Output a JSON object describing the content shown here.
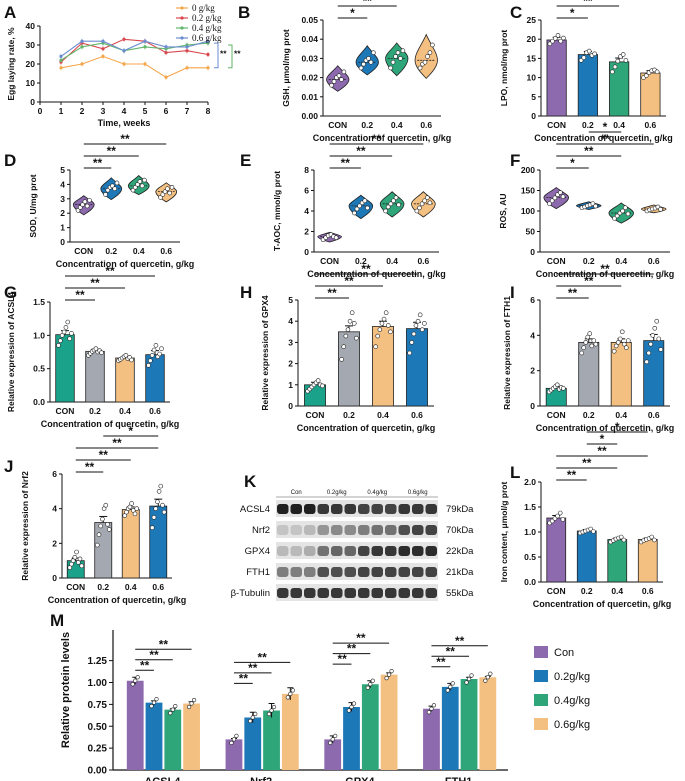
{
  "colors": {
    "con": "#8d69ae",
    "g02": "#1d78b8",
    "g04": "#2ea67a",
    "g06": "#f4c081",
    "g02_line": "#d9484f",
    "g04_line": "#62b66a",
    "g06_line": "#6a8ccf",
    "con_line": "#f4a64a"
  },
  "shared": {
    "x_categories": [
      "CON",
      "0.2",
      "0.4",
      "0.6"
    ],
    "x_title": "Concentration of quercetin, g/kg"
  },
  "chart_data": [
    {
      "id": "A",
      "type": "line",
      "title": "",
      "xlabel": "Time, weeks",
      "ylabel": "Egg laying rate, %",
      "xlim": [
        0,
        8
      ],
      "ylim": [
        0,
        40
      ],
      "xticks": [
        "0",
        "1",
        "2",
        "3",
        "4",
        "5",
        "6",
        "7",
        "8"
      ],
      "yticks": [
        "0",
        "10",
        "20",
        "30",
        "40"
      ],
      "x": [
        1,
        2,
        3,
        4,
        5,
        6,
        7,
        8
      ],
      "series": [
        {
          "name": "0 g/kg",
          "values": [
            18,
            20,
            24,
            20,
            20,
            13,
            18,
            18
          ]
        },
        {
          "name": "0.2 g/kg",
          "values": [
            21,
            31,
            28,
            33,
            32,
            26,
            27,
            25
          ]
        },
        {
          "name": "0.4 g/kg",
          "values": [
            22,
            29,
            31,
            27,
            29,
            28,
            30,
            31
          ]
        },
        {
          "name": "0.6 g/kg",
          "values": [
            24,
            32,
            32,
            27,
            32,
            29,
            29,
            32
          ]
        }
      ],
      "annotations": [
        "**",
        "**"
      ]
    },
    {
      "id": "B",
      "type": "violin",
      "ylabel": "GSH, μmol/mg prot",
      "ylim": [
        0,
        0.05
      ],
      "yticks": [
        "0.00",
        "0.01",
        "0.02",
        "0.03",
        "0.04",
        "0.05"
      ],
      "values": [
        0.019,
        0.028,
        0.03,
        0.029
      ],
      "points": [
        [
          0.016,
          0.018,
          0.02,
          0.021,
          0.019,
          0.023
        ],
        [
          0.025,
          0.027,
          0.029,
          0.03,
          0.028,
          0.033
        ],
        [
          0.025,
          0.028,
          0.031,
          0.033,
          0.03,
          0.034
        ],
        [
          0.025,
          0.027,
          0.028,
          0.031,
          0.033,
          0.037
        ]
      ],
      "significance": [
        {
          "from": 0,
          "to": 1,
          "label": "*"
        },
        {
          "from": 0,
          "to": 2,
          "label": "**"
        },
        {
          "from": 0,
          "to": 3,
          "label": "**"
        }
      ]
    },
    {
      "id": "C",
      "type": "bar",
      "ylabel": "LPO, nmol/mg prot",
      "ylim": [
        0,
        25
      ],
      "yticks": [
        "0",
        "5",
        "10",
        "15",
        "20",
        "25"
      ],
      "values": [
        19.8,
        16.0,
        14.1,
        11.2
      ],
      "errors": [
        0.7,
        0.8,
        1.0,
        0.6
      ],
      "points": [
        [
          18.8,
          19.5,
          20.2,
          21.0,
          19.5,
          20.3
        ],
        [
          14.5,
          15.2,
          16.5,
          16.9,
          15.8,
          16.2
        ],
        [
          11.5,
          12.8,
          14.3,
          15.5,
          16.0,
          14.5
        ],
        [
          10.0,
          10.5,
          11.3,
          11.8,
          12.0,
          11.5
        ]
      ],
      "significance": [
        {
          "from": 0,
          "to": 1,
          "label": "*"
        },
        {
          "from": 0,
          "to": 2,
          "label": "**"
        },
        {
          "from": 0,
          "to": 3,
          "label": "**"
        },
        {
          "from": 1,
          "to": 3,
          "label": "**"
        }
      ]
    },
    {
      "id": "D",
      "type": "violin",
      "ylabel": "SOD, U/mg prot",
      "ylim": [
        0,
        5
      ],
      "yticks": [
        "0",
        "1",
        "2",
        "3",
        "4",
        "5"
      ],
      "values": [
        2.6,
        3.7,
        3.9,
        3.5
      ],
      "points": [
        [
          2.2,
          2.4,
          2.6,
          2.8,
          2.5,
          2.9
        ],
        [
          3.3,
          3.6,
          3.8,
          3.9,
          3.7,
          4.1
        ],
        [
          3.6,
          3.8,
          4.0,
          4.2,
          3.9,
          4.3
        ],
        [
          3.1,
          3.3,
          3.5,
          3.7,
          3.4,
          3.8
        ]
      ],
      "significance": [
        {
          "from": 0,
          "to": 1,
          "label": "**"
        },
        {
          "from": 0,
          "to": 2,
          "label": "**"
        },
        {
          "from": 0,
          "to": 3,
          "label": "**"
        }
      ]
    },
    {
      "id": "E",
      "type": "violin",
      "ylabel": "T-AOC, mmol/g prot",
      "ylim": [
        0,
        8
      ],
      "yticks": [
        "0",
        "2",
        "4",
        "6",
        "8"
      ],
      "values": [
        1.5,
        4.5,
        4.7,
        4.7
      ],
      "points": [
        [
          1.2,
          1.4,
          1.6,
          1.7,
          1.5,
          1.4
        ],
        [
          3.8,
          4.2,
          4.5,
          4.8,
          5.0,
          4.3
        ],
        [
          4.0,
          4.4,
          4.7,
          5.0,
          5.3,
          4.6
        ],
        [
          4.0,
          4.3,
          4.7,
          5.0,
          5.3,
          4.8
        ]
      ],
      "significance": [
        {
          "from": 0,
          "to": 1,
          "label": "**"
        },
        {
          "from": 0,
          "to": 2,
          "label": "**"
        },
        {
          "from": 0,
          "to": 3,
          "label": "**"
        }
      ]
    },
    {
      "id": "F",
      "type": "violin",
      "ylabel": "ROS, AU",
      "ylim": [
        0,
        200
      ],
      "yticks": [
        "0",
        "50",
        "100",
        "150",
        "200"
      ],
      "values": [
        133,
        113,
        95,
        105
      ],
      "points": [
        [
          118,
          125,
          132,
          140,
          145,
          135
        ],
        [
          108,
          110,
          113,
          115,
          118,
          112
        ],
        [
          82,
          88,
          95,
          100,
          108,
          93
        ],
        [
          100,
          103,
          105,
          107,
          110,
          104
        ]
      ],
      "significance": [
        {
          "from": 0,
          "to": 1,
          "label": "*"
        },
        {
          "from": 0,
          "to": 2,
          "label": "**"
        },
        {
          "from": 0,
          "to": 3,
          "label": "**"
        },
        {
          "from": 1,
          "to": 2,
          "label": "*"
        }
      ]
    },
    {
      "id": "G",
      "type": "bar",
      "ylabel": "Relative expression of ACSL4",
      "ylim": [
        0,
        1.5
      ],
      "yticks": [
        "0.0",
        "0.5",
        "1.0",
        "1.5"
      ],
      "values": [
        1.01,
        0.76,
        0.66,
        0.71
      ],
      "errors": [
        0.06,
        0.03,
        0.02,
        0.06
      ],
      "points": [
        [
          0.85,
          0.92,
          1.0,
          1.05,
          1.12,
          1.2,
          0.95,
          1.03
        ],
        [
          0.7,
          0.73,
          0.76,
          0.78,
          0.8,
          0.75,
          0.77,
          0.74
        ],
        [
          0.62,
          0.64,
          0.66,
          0.68,
          0.7,
          0.65,
          0.67,
          0.63
        ],
        [
          0.55,
          0.62,
          0.7,
          0.78,
          0.85,
          0.68,
          0.72,
          0.8
        ]
      ],
      "significance": [
        {
          "from": 0,
          "to": 1,
          "label": "**"
        },
        {
          "from": 0,
          "to": 2,
          "label": "**"
        },
        {
          "from": 0,
          "to": 3,
          "label": "**"
        }
      ]
    },
    {
      "id": "H",
      "type": "bar",
      "ylabel": "Relative expression of GPX4",
      "ylim": [
        0,
        5
      ],
      "yticks": [
        "0",
        "1",
        "2",
        "3",
        "4",
        "5"
      ],
      "values": [
        1.0,
        3.5,
        3.75,
        3.65
      ],
      "errors": [
        0.12,
        0.28,
        0.25,
        0.3
      ],
      "points": [
        [
          0.7,
          0.8,
          0.9,
          1.0,
          1.1,
          1.2,
          1.0,
          0.95
        ],
        [
          2.2,
          2.8,
          3.3,
          3.6,
          4.0,
          4.4,
          3.9,
          3.2
        ],
        [
          2.8,
          3.3,
          3.6,
          3.9,
          4.1,
          4.4,
          3.8,
          3.5
        ],
        [
          2.5,
          3.0,
          3.4,
          3.8,
          4.0,
          4.3,
          3.6,
          3.9
        ]
      ],
      "significance": [
        {
          "from": 0,
          "to": 1,
          "label": "**"
        },
        {
          "from": 0,
          "to": 2,
          "label": "**"
        },
        {
          "from": 0,
          "to": 3,
          "label": "**"
        }
      ]
    },
    {
      "id": "I",
      "type": "bar",
      "ylabel": "Relative expression of FTH1",
      "ylim": [
        0,
        6
      ],
      "yticks": [
        "0",
        "2",
        "4",
        "6"
      ],
      "values": [
        1.0,
        3.6,
        3.6,
        3.7
      ],
      "errors": [
        0.1,
        0.2,
        0.2,
        0.35
      ],
      "points": [
        [
          0.8,
          0.9,
          1.0,
          1.1,
          1.2,
          0.95,
          1.05,
          1.0
        ],
        [
          3.0,
          3.3,
          3.6,
          3.9,
          4.1,
          3.4,
          3.7,
          3.5
        ],
        [
          3.1,
          3.4,
          3.6,
          3.8,
          4.2,
          3.5,
          3.3,
          3.7
        ],
        [
          2.5,
          3.0,
          3.5,
          4.0,
          4.4,
          4.8,
          3.8,
          3.2
        ]
      ],
      "significance": [
        {
          "from": 0,
          "to": 1,
          "label": "**"
        },
        {
          "from": 0,
          "to": 2,
          "label": "**"
        },
        {
          "from": 0,
          "to": 3,
          "label": "**"
        }
      ]
    },
    {
      "id": "J",
      "type": "bar",
      "ylabel": "Relative expression of Nrf2",
      "ylim": [
        0,
        6
      ],
      "yticks": [
        "0",
        "2",
        "4",
        "6"
      ],
      "values": [
        1.0,
        3.2,
        3.95,
        4.15
      ],
      "errors": [
        0.15,
        0.35,
        0.15,
        0.4
      ],
      "points": [
        [
          0.6,
          0.8,
          1.0,
          1.2,
          1.5,
          0.9,
          1.1,
          0.7
        ],
        [
          1.9,
          2.5,
          3.0,
          3.4,
          4.0,
          4.2,
          3.1,
          2.8
        ],
        [
          3.6,
          3.8,
          4.0,
          4.1,
          4.3,
          3.9,
          3.7,
          4.0
        ],
        [
          2.9,
          3.5,
          4.0,
          4.4,
          5.0,
          5.3,
          4.2,
          3.8
        ]
      ],
      "significance": [
        {
          "from": 0,
          "to": 1,
          "label": "**"
        },
        {
          "from": 0,
          "to": 2,
          "label": "**"
        },
        {
          "from": 0,
          "to": 3,
          "label": "**"
        },
        {
          "from": 1,
          "to": 3,
          "label": "*"
        }
      ]
    },
    {
      "id": "L",
      "type": "bar",
      "ylabel": "Iron content, μmol/g prot",
      "ylim": [
        0,
        2.0
      ],
      "yticks": [
        "0.0",
        "0.5",
        "1.0",
        "1.5",
        "2.0"
      ],
      "values": [
        1.28,
        1.02,
        0.85,
        0.85
      ],
      "errors": [
        0.05,
        0.03,
        0.03,
        0.03
      ],
      "points": [
        [
          1.18,
          1.22,
          1.27,
          1.32,
          1.38,
          1.25
        ],
        [
          0.98,
          1.0,
          1.02,
          1.04,
          1.06,
          1.01
        ],
        [
          0.8,
          0.83,
          0.86,
          0.88,
          0.9,
          0.84
        ],
        [
          0.8,
          0.83,
          0.85,
          0.87,
          0.9,
          0.84
        ]
      ],
      "significance": [
        {
          "from": 0,
          "to": 1,
          "label": "**"
        },
        {
          "from": 0,
          "to": 2,
          "label": "**"
        },
        {
          "from": 0,
          "to": 3,
          "label": "**"
        },
        {
          "from": 1,
          "to": 2,
          "label": "*"
        },
        {
          "from": 1,
          "to": 3,
          "label": "*"
        }
      ]
    },
    {
      "id": "M",
      "type": "grouped-bar",
      "ylabel": "Relative protein levels",
      "ylim": [
        0,
        1.6
      ],
      "yticks": [
        "0.00",
        "0.25",
        "0.50",
        "0.75",
        "1.00",
        "1.25"
      ],
      "categories": [
        "ACSL4",
        "Nrf2",
        "GPX4",
        "FTH1"
      ],
      "series": [
        {
          "name": "Con",
          "values": [
            1.02,
            0.35,
            0.35,
            0.7
          ],
          "errors": [
            0.04,
            0.01,
            0.04,
            0.03
          ]
        },
        {
          "name": "0.2g/kg",
          "values": [
            0.77,
            0.6,
            0.72,
            0.95
          ],
          "errors": [
            0.02,
            0.06,
            0.05,
            0.04
          ]
        },
        {
          "name": "0.4g/kg",
          "values": [
            0.69,
            0.68,
            0.98,
            1.04
          ],
          "errors": [
            0.01,
            0.08,
            0.04,
            0.02
          ]
        },
        {
          "name": "0.6g/kg",
          "values": [
            0.76,
            0.87,
            1.09,
            1.06
          ],
          "errors": [
            0.02,
            0.07,
            0.02,
            0.01
          ]
        }
      ],
      "significance_labels": [
        "**",
        "**",
        "**"
      ],
      "legend_position": "right"
    }
  ],
  "western_blot": {
    "label": "K",
    "group_labels": [
      "Con",
      "0.2g/kg",
      "0.4g/kg",
      "0.6g/kg"
    ],
    "proteins": [
      {
        "name": "ACSL4",
        "kda": "79kDa",
        "intensity": [
          0.95,
          0.95,
          0.95,
          0.85,
          0.85,
          0.85,
          0.8,
          0.8,
          0.8,
          0.85,
          0.85,
          0.85
        ]
      },
      {
        "name": "Nrf2",
        "kda": "70kDa",
        "intensity": [
          0.25,
          0.25,
          0.3,
          0.45,
          0.5,
          0.5,
          0.55,
          0.6,
          0.6,
          0.75,
          0.8,
          0.8
        ]
      },
      {
        "name": "GPX4",
        "kda": "22kDa",
        "intensity": [
          0.3,
          0.3,
          0.35,
          0.6,
          0.65,
          0.65,
          0.8,
          0.85,
          0.85,
          0.9,
          0.9,
          0.9
        ]
      },
      {
        "name": "FTH1",
        "kda": "21kDa",
        "intensity": [
          0.55,
          0.55,
          0.55,
          0.75,
          0.75,
          0.75,
          0.8,
          0.8,
          0.8,
          0.8,
          0.8,
          0.8
        ]
      },
      {
        "name": "β-Tubulin",
        "kda": "55kDa",
        "intensity": [
          0.85,
          0.85,
          0.85,
          0.85,
          0.85,
          0.85,
          0.85,
          0.85,
          0.85,
          0.85,
          0.85,
          0.85
        ]
      }
    ]
  }
}
